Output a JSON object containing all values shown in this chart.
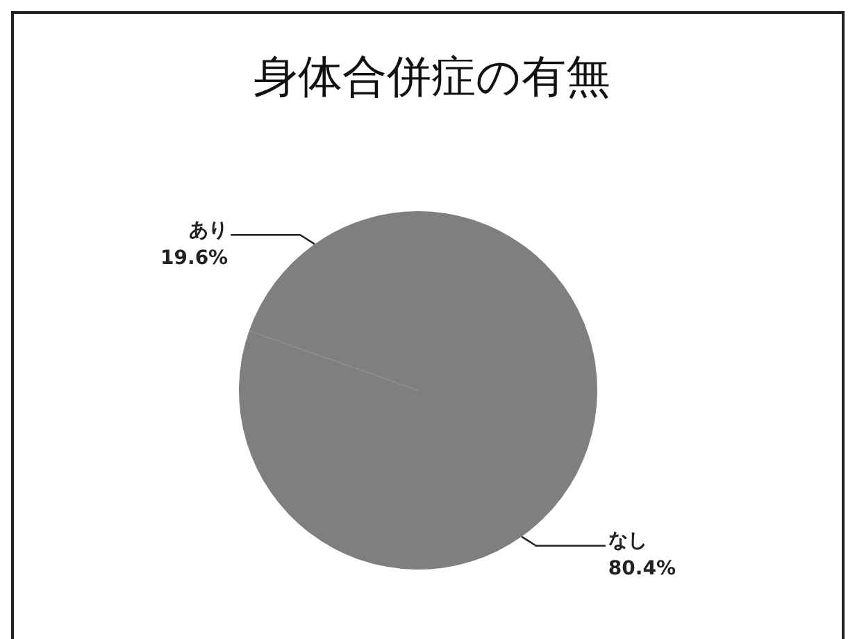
{
  "chart_data": {
    "type": "pie",
    "title": "身体合併症の有無",
    "categories": [
      "なし",
      "あり"
    ],
    "values": [
      80.4,
      19.6
    ],
    "colors": [
      "#7f7f7f",
      "#7f7f7f"
    ],
    "value_labels": [
      "80.4%",
      "19.6%"
    ],
    "legend": false
  }
}
